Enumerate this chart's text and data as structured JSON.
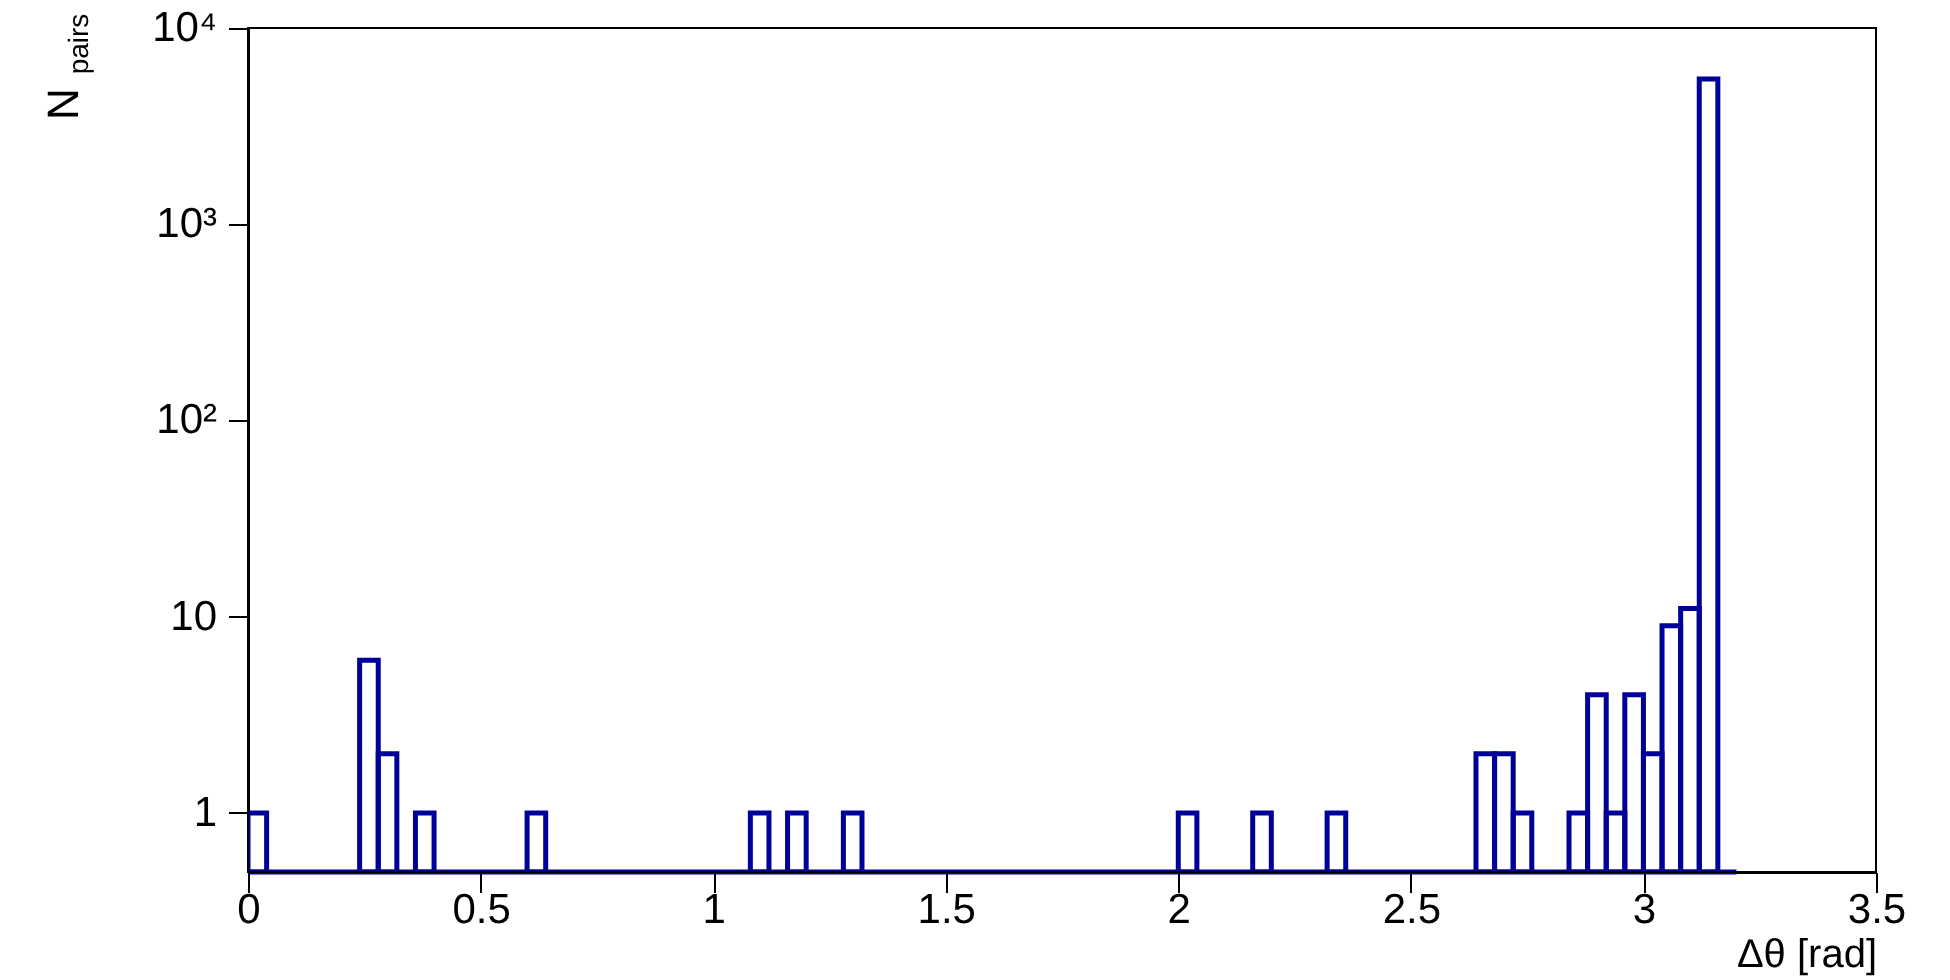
{
  "chart_data": {
    "type": "histogram",
    "xlabel": "Δθ [rad]",
    "ylabel": "N$_{pairs}$",
    "bins": [
      0,
      0.04,
      0.08,
      0.12,
      0.16,
      0.2,
      0.24,
      0.28,
      0.32,
      0.36,
      0.4,
      0.44,
      0.48,
      0.52,
      0.56,
      0.6,
      0.64,
      0.68,
      0.72,
      0.76,
      0.8,
      0.84,
      0.88,
      0.92,
      0.96,
      1.0,
      1.04,
      1.08,
      1.12,
      1.16,
      1.2,
      1.24,
      1.28,
      1.32,
      1.36,
      1.4,
      1.44,
      1.48,
      1.52,
      1.56,
      1.6,
      1.64,
      1.68,
      1.72,
      1.76,
      1.8,
      1.84,
      1.88,
      1.92,
      1.96,
      2.0,
      2.04,
      2.08,
      2.12,
      2.16,
      2.2,
      2.24,
      2.28,
      2.32,
      2.36,
      2.4,
      2.44,
      2.48,
      2.52,
      2.56,
      2.6,
      2.64,
      2.68,
      2.72,
      2.76,
      2.8,
      2.84,
      2.88,
      2.92,
      2.96,
      3.0,
      3.04,
      3.08,
      3.12,
      3.16,
      3.2
    ],
    "values": [
      1,
      null,
      null,
      null,
      null,
      null,
      6,
      2,
      null,
      1,
      null,
      null,
      null,
      null,
      null,
      1,
      null,
      null,
      null,
      null,
      null,
      null,
      null,
      null,
      null,
      null,
      null,
      1,
      null,
      1,
      null,
      null,
      1,
      null,
      null,
      null,
      null,
      null,
      null,
      null,
      null,
      null,
      null,
      null,
      null,
      null,
      null,
      null,
      null,
      null,
      1,
      null,
      null,
      null,
      1,
      null,
      null,
      null,
      1,
      null,
      null,
      null,
      null,
      null,
      null,
      null,
      2,
      2,
      1,
      null,
      null,
      1,
      4,
      1,
      4,
      2,
      9,
      11,
      5500,
      null
    ],
    "color": "#000099",
    "log": "y",
    "xlim": [
      0,
      3.5
    ],
    "xticks": [
      0,
      0.5,
      1,
      1.5,
      2,
      2.5,
      3,
      3.5
    ],
    "ylim": [
      0.5,
      10000
    ],
    "yticks": [
      1,
      10,
      {
        "value": 100,
        "label": "10²"
      },
      {
        "value": 1000,
        "label": "10³"
      },
      {
        "value": 10000,
        "label": "10⁴"
      }
    ],
    "grid": false
  }
}
